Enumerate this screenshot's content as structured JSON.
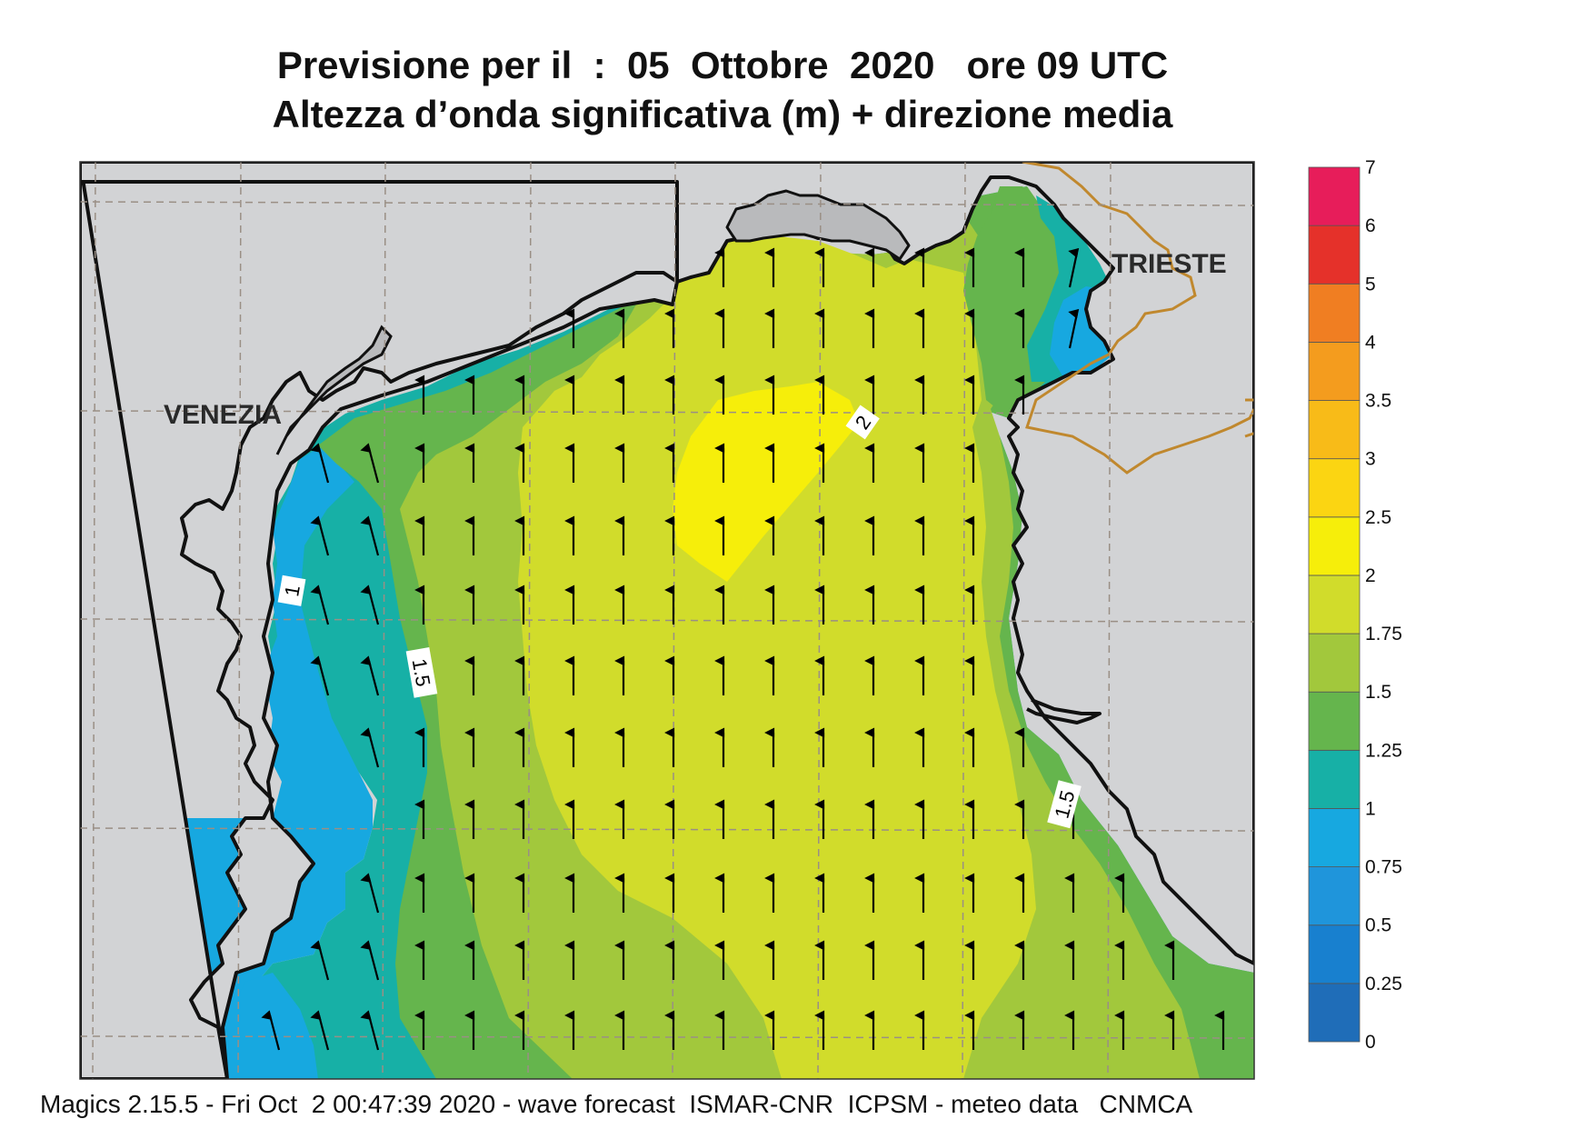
{
  "title": {
    "line1": "Previsione per il  :  05  Ottobre  2020   ore 09 UTC",
    "line2": "Altezza d’onda significativa (m) + direzione media"
  },
  "footer": "Magics 2.15.5 - Fri Oct  2 00:47:39 2020 - wave forecast  ISMAR-CNR  ICPSM - meteo data   CNMCA",
  "cities": [
    {
      "name": "VENEZIA"
    },
    {
      "name": "TRIESTE"
    }
  ],
  "contour_labels": [
    "1",
    "1.5",
    "2",
    "1.5"
  ],
  "colorbar": {
    "levels": [
      "0",
      "0.25",
      "0.5",
      "0.75",
      "1",
      "1.25",
      "1.5",
      "1.75",
      "2",
      "2.5",
      "3",
      "3.5",
      "4",
      "5",
      "6",
      "7"
    ],
    "colors": [
      "#1f6db8",
      "#1880cf",
      "#1f95db",
      "#17a8e0",
      "#17b0a6",
      "#65b54d",
      "#a2c83c",
      "#d1dc2b",
      "#f6ee0a",
      "#fbd512",
      "#f8bb18",
      "#f49c1e",
      "#f07e22",
      "#e5312a",
      "#e71d5a"
    ]
  },
  "colors": {
    "land": "#d2d3d5",
    "coast": "#111111",
    "border": "#c0882e",
    "grid": "#9a8f85"
  },
  "wave_direction": "north"
}
